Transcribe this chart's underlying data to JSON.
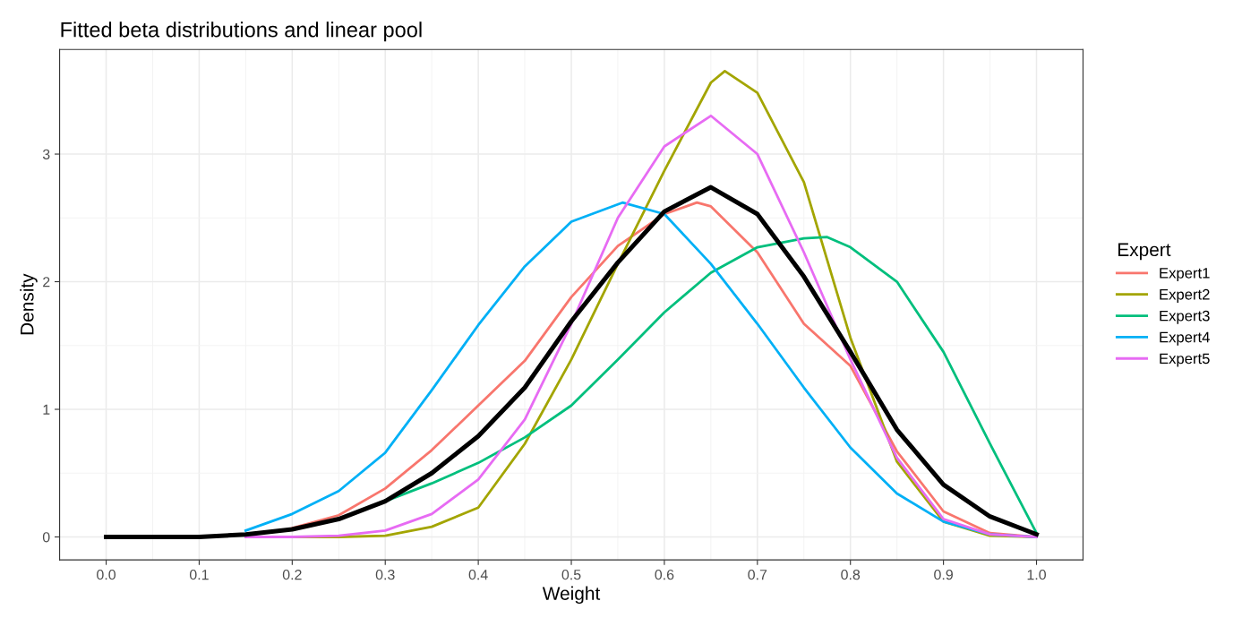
{
  "chart_data": {
    "type": "line",
    "title": "Fitted beta distributions and linear pool",
    "xlabel": "Weight",
    "ylabel": "Density",
    "legend_title": "Expert",
    "legend": "right",
    "grid": true,
    "xlim": [
      -0.05,
      1.05
    ],
    "ylim": [
      -0.18,
      3.82
    ],
    "xticks": [
      {
        "value": 0,
        "label": "0.0"
      },
      {
        "value": 0.1,
        "label": "0.1"
      },
      {
        "value": 0.2,
        "label": "0.2"
      },
      {
        "value": 0.3,
        "label": "0.3"
      },
      {
        "value": 0.4,
        "label": "0.4"
      },
      {
        "value": 0.5,
        "label": "0.5"
      },
      {
        "value": 0.6,
        "label": "0.6"
      },
      {
        "value": 0.7,
        "label": "0.7"
      },
      {
        "value": 0.8,
        "label": "0.8"
      },
      {
        "value": 0.9,
        "label": "0.9"
      },
      {
        "value": 1,
        "label": "1.0"
      }
    ],
    "yticks": [
      0,
      1,
      2,
      3
    ],
    "series": [
      {
        "name": "Expert1",
        "color": "#f8766d",
        "x": [
          0.2,
          0.25,
          0.3,
          0.35,
          0.4,
          0.45,
          0.5,
          0.55,
          0.6,
          0.635,
          0.65,
          0.7,
          0.75,
          0.8,
          0.85,
          0.9,
          0.95,
          1
        ],
        "values": [
          0.07,
          0.17,
          0.38,
          0.68,
          1.03,
          1.38,
          1.88,
          2.28,
          2.53,
          2.62,
          2.59,
          2.23,
          1.67,
          1.34,
          0.67,
          0.2,
          0.03,
          0
        ]
      },
      {
        "name": "Expert2",
        "color": "#a3a500",
        "x": [
          0.15,
          0.2,
          0.25,
          0.3,
          0.35,
          0.4,
          0.45,
          0.5,
          0.55,
          0.6,
          0.65,
          0.665,
          0.7,
          0.75,
          0.8,
          0.85,
          0.9,
          0.95,
          1
        ],
        "values": [
          0,
          0,
          0,
          0.01,
          0.08,
          0.23,
          0.73,
          1.39,
          2.14,
          2.87,
          3.56,
          3.65,
          3.48,
          2.78,
          1.56,
          0.59,
          0.12,
          0.01,
          0
        ]
      },
      {
        "name": "Expert3",
        "color": "#00bf7d",
        "x": [
          0.25,
          0.3,
          0.35,
          0.4,
          0.45,
          0.5,
          0.55,
          0.6,
          0.65,
          0.7,
          0.75,
          0.775,
          0.8,
          0.85,
          0.9,
          0.95,
          1
        ],
        "values": [
          0.14,
          0.28,
          0.42,
          0.58,
          0.78,
          1.03,
          1.39,
          1.76,
          2.07,
          2.27,
          2.34,
          2.35,
          2.27,
          2.0,
          1.45,
          0.73,
          0.03
        ]
      },
      {
        "name": "Expert4",
        "color": "#00b0f6",
        "x": [
          0.15,
          0.2,
          0.25,
          0.3,
          0.35,
          0.4,
          0.45,
          0.5,
          0.555,
          0.6,
          0.65,
          0.7,
          0.75,
          0.8,
          0.85,
          0.9,
          0.95,
          1
        ],
        "values": [
          0.05,
          0.18,
          0.36,
          0.66,
          1.15,
          1.66,
          2.12,
          2.47,
          2.62,
          2.53,
          2.14,
          1.67,
          1.17,
          0.7,
          0.34,
          0.12,
          0.02,
          0
        ]
      },
      {
        "name": "Expert5",
        "color": "#e76bf3",
        "x": [
          0.15,
          0.2,
          0.25,
          0.3,
          0.35,
          0.4,
          0.45,
          0.5,
          0.55,
          0.6,
          0.65,
          0.7,
          0.75,
          0.8,
          0.85,
          0.9,
          0.95,
          1
        ],
        "values": [
          0,
          0,
          0.01,
          0.05,
          0.18,
          0.45,
          0.92,
          1.67,
          2.5,
          3.06,
          3.3,
          3.0,
          2.23,
          1.39,
          0.62,
          0.14,
          0.02,
          0
        ]
      },
      {
        "color": "#000000",
        "x": [
          0,
          0.05,
          0.1,
          0.15,
          0.2,
          0.25,
          0.3,
          0.35,
          0.4,
          0.45,
          0.5,
          0.55,
          0.6,
          0.65,
          0.7,
          0.75,
          0.8,
          0.85,
          0.9,
          0.95,
          1
        ],
        "values": [
          0,
          0,
          0,
          0.02,
          0.06,
          0.14,
          0.28,
          0.5,
          0.79,
          1.17,
          1.69,
          2.15,
          2.55,
          2.74,
          2.53,
          2.04,
          1.45,
          0.84,
          0.41,
          0.16,
          0.02
        ]
      }
    ]
  }
}
